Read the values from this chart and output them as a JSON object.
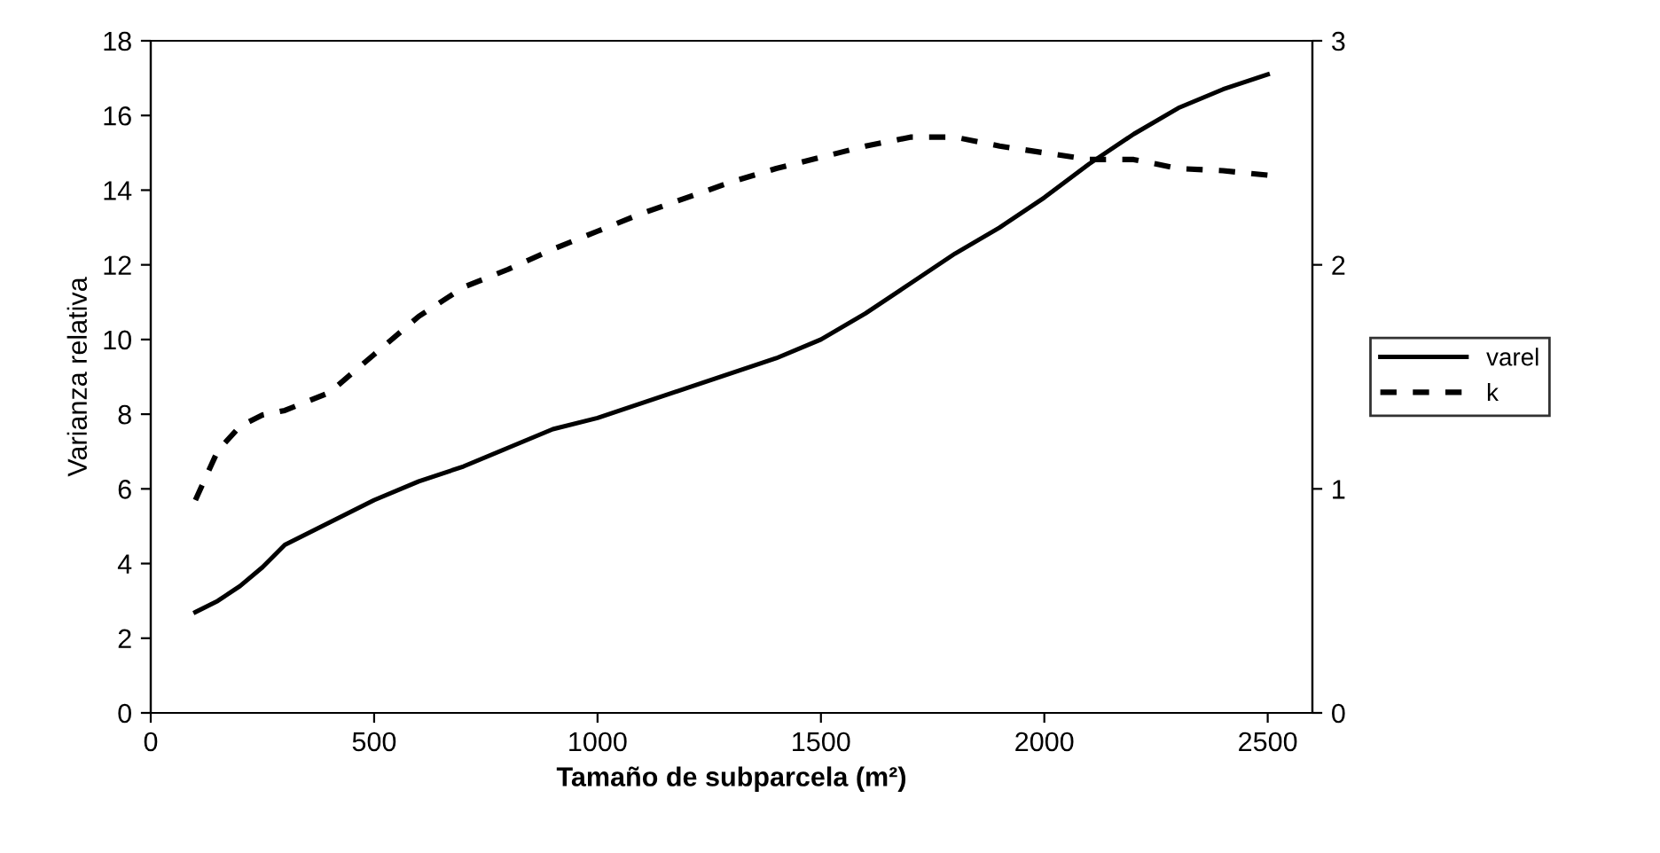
{
  "chart_data": {
    "type": "line",
    "xlabel": "Tamaño de subparcela (m²)",
    "ylabel": "Varianza relativa",
    "xlim": [
      0,
      2600
    ],
    "xticks": [
      0,
      500,
      1000,
      1500,
      2000,
      2500
    ],
    "ylim": [
      0,
      18
    ],
    "yticks": [
      0,
      2,
      4,
      6,
      8,
      10,
      12,
      14,
      16,
      18
    ],
    "y2lim": [
      0,
      3
    ],
    "y2ticks": [
      0,
      1,
      2,
      3
    ],
    "grid": false,
    "legend": "right",
    "marker": "none",
    "series": [
      {
        "name": "varel",
        "color": "#000000",
        "line_style": "solid",
        "x": [
          100,
          150,
          200,
          250,
          300,
          400,
          500,
          600,
          700,
          800,
          900,
          1000,
          1200,
          1400,
          1500,
          1600,
          1700,
          1800,
          1900,
          2000,
          2100,
          2200,
          2300,
          2400,
          2500
        ],
        "values": [
          2.7,
          3.0,
          3.4,
          3.9,
          4.5,
          5.1,
          5.7,
          6.2,
          6.6,
          7.1,
          7.6,
          7.9,
          8.7,
          9.5,
          10.0,
          10.7,
          11.5,
          12.3,
          13.0,
          13.8,
          14.7,
          15.5,
          16.2,
          16.7,
          17.1
        ]
      },
      {
        "name": "k",
        "color": "#000000",
        "line_style": "dashed",
        "axis": "y2",
        "x": [
          100,
          150,
          200,
          250,
          300,
          400,
          500,
          600,
          700,
          800,
          900,
          1000,
          1100,
          1200,
          1300,
          1400,
          1500,
          1600,
          1700,
          1800,
          1900,
          2000,
          2100,
          2200,
          2300,
          2400,
          2500
        ],
        "values": [
          0.95,
          1.17,
          1.28,
          1.33,
          1.35,
          1.43,
          1.6,
          1.77,
          1.9,
          1.98,
          2.07,
          2.15,
          2.23,
          2.3,
          2.37,
          2.43,
          2.48,
          2.53,
          2.57,
          2.57,
          2.53,
          2.5,
          2.47,
          2.47,
          2.43,
          2.42,
          2.4
        ]
      }
    ]
  }
}
